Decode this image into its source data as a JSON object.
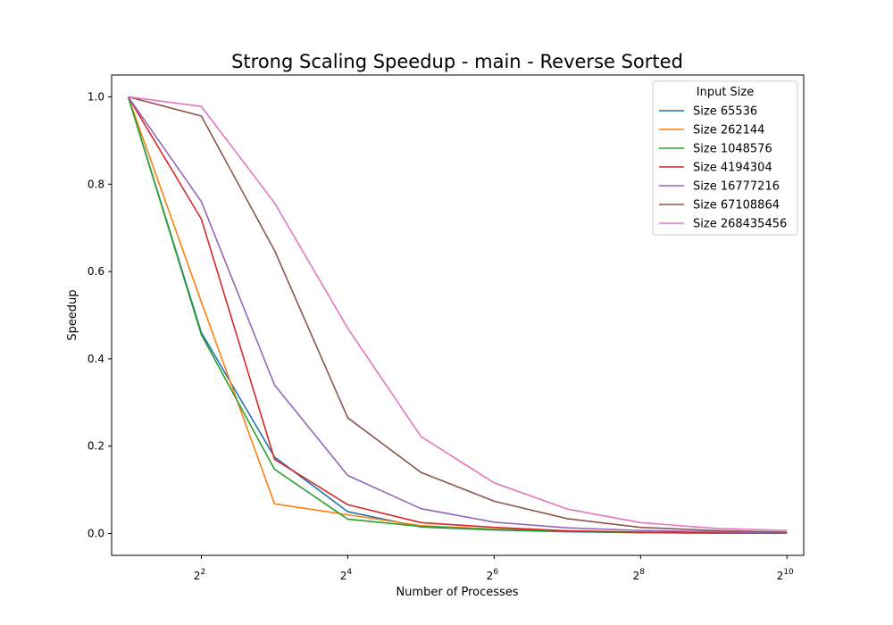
{
  "chart_data": {
    "type": "line",
    "title": "Strong Scaling Speedup - main - Reverse Sorted",
    "xlabel": "Number of Processes",
    "ylabel": "Speedup",
    "x_scale": "log2",
    "x": [
      2,
      4,
      8,
      16,
      32,
      64,
      128,
      256,
      512,
      1024
    ],
    "xticks": [
      {
        "value": 4,
        "base": "2",
        "exp": "2"
      },
      {
        "value": 16,
        "base": "2",
        "exp": "4"
      },
      {
        "value": 64,
        "base": "2",
        "exp": "6"
      },
      {
        "value": 256,
        "base": "2",
        "exp": "8"
      },
      {
        "value": 1024,
        "base": "2",
        "exp": "10"
      }
    ],
    "xlim": [
      1.71,
      1200
    ],
    "yticks": [
      "0.0",
      "0.2",
      "0.4",
      "0.6",
      "0.8",
      "1.0"
    ],
    "ylim": [
      -0.05,
      1.05
    ],
    "grid": false,
    "legend": {
      "title": "Input Size",
      "placement": "top-right"
    },
    "series": [
      {
        "name": "Size 65536",
        "color": "#1f77b4",
        "values": [
          1.0,
          0.46,
          0.175,
          0.05,
          0.015,
          0.008,
          0.004,
          0.002,
          0.001,
          0.001
        ]
      },
      {
        "name": "Size 262144",
        "color": "#ff7f0e",
        "values": [
          1.0,
          0.53,
          0.068,
          0.043,
          0.018,
          0.01,
          0.006,
          0.003,
          0.002,
          0.001
        ]
      },
      {
        "name": "Size 1048576",
        "color": "#2ca02c",
        "values": [
          1.0,
          0.455,
          0.147,
          0.033,
          0.016,
          0.009,
          0.005,
          0.002,
          0.001,
          0.001
        ]
      },
      {
        "name": "Size 4194304",
        "color": "#d62728",
        "values": [
          1.0,
          0.72,
          0.17,
          0.066,
          0.025,
          0.014,
          0.006,
          0.003,
          0.002,
          0.001
        ]
      },
      {
        "name": "Size 16777216",
        "color": "#9467bd",
        "values": [
          1.0,
          0.76,
          0.34,
          0.133,
          0.057,
          0.026,
          0.013,
          0.007,
          0.004,
          0.002
        ]
      },
      {
        "name": "Size 67108864",
        "color": "#8c564b",
        "values": [
          1.0,
          0.956,
          0.648,
          0.265,
          0.14,
          0.074,
          0.034,
          0.014,
          0.007,
          0.003
        ]
      },
      {
        "name": "Size 268435456",
        "color": "#e377c2",
        "values": [
          1.0,
          0.978,
          0.757,
          0.47,
          0.222,
          0.116,
          0.056,
          0.025,
          0.012,
          0.007
        ]
      }
    ]
  }
}
